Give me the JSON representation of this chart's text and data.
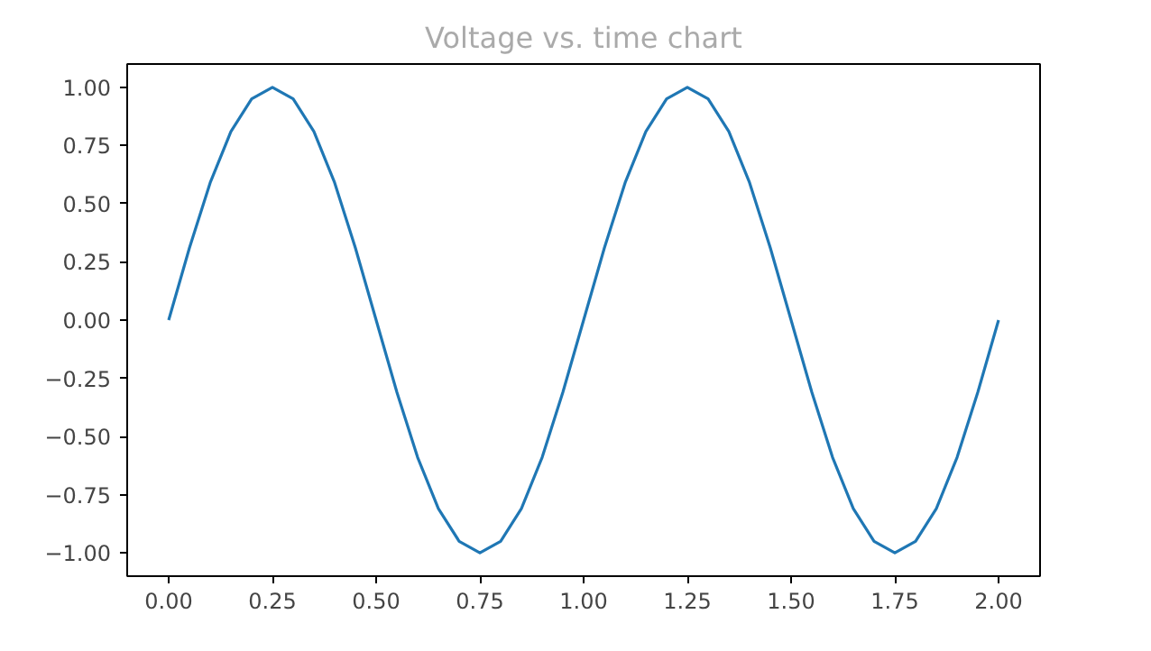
{
  "chart_data": {
    "type": "line",
    "title": "Voltage vs. time chart",
    "x": [
      0,
      0.05,
      0.1,
      0.15,
      0.2,
      0.25,
      0.3,
      0.35,
      0.4,
      0.45,
      0.5,
      0.55,
      0.6,
      0.65,
      0.7,
      0.75,
      0.8,
      0.85,
      0.9,
      0.95,
      1,
      1.05,
      1.1,
      1.15,
      1.2,
      1.25,
      1.3,
      1.35,
      1.4,
      1.45,
      1.5,
      1.55,
      1.6,
      1.65,
      1.7,
      1.75,
      1.8,
      1.85,
      1.9,
      1.95,
      2
    ],
    "series": [
      {
        "color": "#1f77b4",
        "values": [
          0,
          0.31,
          0.59,
          0.81,
          0.95,
          1,
          0.95,
          0.81,
          0.59,
          0.31,
          0,
          -0.31,
          -0.59,
          -0.81,
          -0.95,
          -1,
          -0.95,
          -0.81,
          -0.59,
          -0.31,
          0,
          0.31,
          0.59,
          0.81,
          0.95,
          1,
          0.95,
          0.81,
          0.59,
          0.31,
          0,
          -0.31,
          -0.59,
          -0.81,
          -0.95,
          -1,
          -0.95,
          -0.81,
          -0.59,
          -0.31,
          0
        ]
      }
    ],
    "xlim": [
      -0.1,
      2.1
    ],
    "ylim": [
      -1.1,
      1.1
    ],
    "xticks": [
      {
        "value": 0,
        "label": "0.00"
      },
      {
        "value": 0.25,
        "label": "0.25"
      },
      {
        "value": 0.5,
        "label": "0.50"
      },
      {
        "value": 0.75,
        "label": "0.75"
      },
      {
        "value": 1,
        "label": "1.00"
      },
      {
        "value": 1.25,
        "label": "1.25"
      },
      {
        "value": 1.5,
        "label": "1.50"
      },
      {
        "value": 1.75,
        "label": "1.75"
      },
      {
        "value": 2,
        "label": "2.00"
      }
    ],
    "yticks": [
      {
        "value": -1,
        "label": "−1.00"
      },
      {
        "value": -0.75,
        "label": "−0.75"
      },
      {
        "value": -0.5,
        "label": "−0.50"
      },
      {
        "value": -0.25,
        "label": "−0.25"
      },
      {
        "value": 0,
        "label": "0.00"
      },
      {
        "value": 0.25,
        "label": "0.25"
      },
      {
        "value": 0.5,
        "label": "0.50"
      },
      {
        "value": 0.75,
        "label": "0.75"
      },
      {
        "value": 1,
        "label": "1.00"
      }
    ],
    "grid": false,
    "marker": "none",
    "line_style": "solid"
  }
}
